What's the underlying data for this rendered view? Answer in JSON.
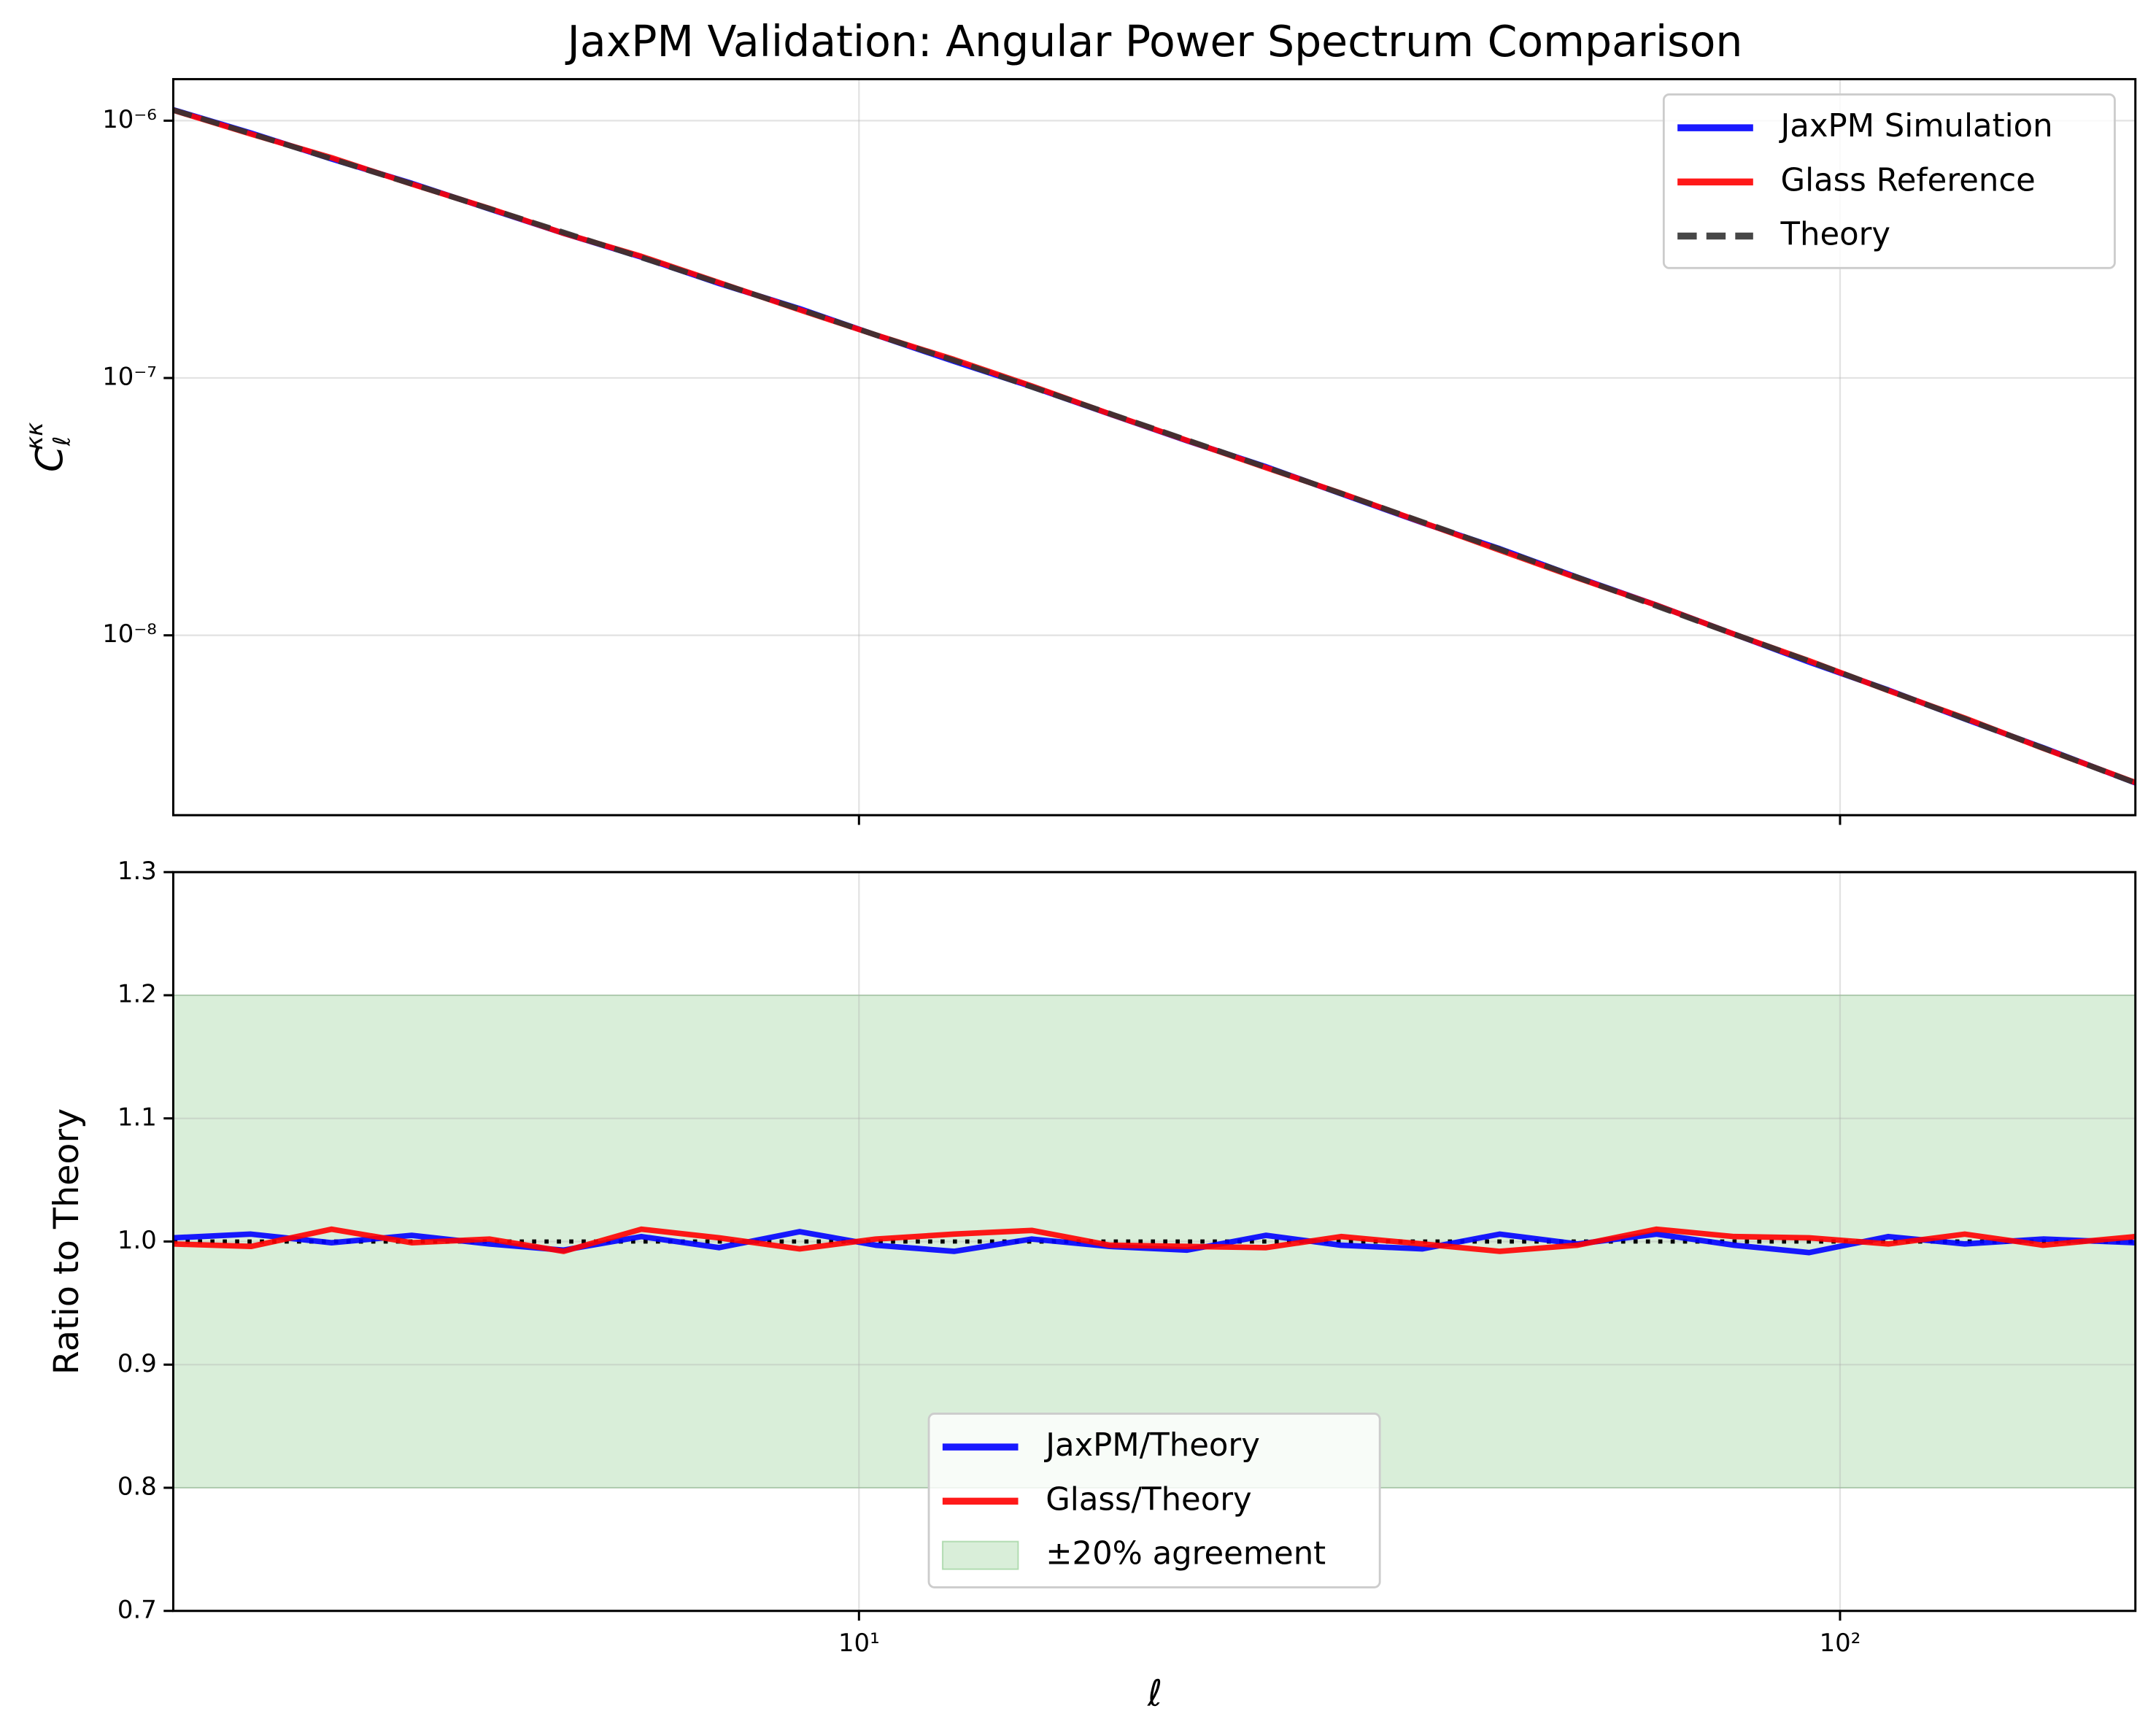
{
  "chart_data": [
    {
      "type": "line",
      "title": "JaxPM Validation: Angular Power Spectrum Comparison",
      "ylabel": {
        "base": "C",
        "sub": "ℓ",
        "sup": "κκ"
      },
      "x": [
        2,
        2.4,
        2.9,
        3.5,
        4.2,
        5,
        6,
        7.2,
        8.7,
        10.4,
        12.5,
        15,
        18,
        21.6,
        26,
        31,
        37.5,
        45,
        54,
        65,
        78,
        93,
        112,
        134,
        161,
        200
      ],
      "xscale": "log",
      "yscale": "log",
      "xlim": [
        2,
        200
      ],
      "ylim": [
        2e-09,
        1.45e-06
      ],
      "xticks": [
        10,
        100
      ],
      "yticks": [
        {
          "value": 1e-08,
          "label": "10⁻⁸"
        },
        {
          "value": 1e-07,
          "label": "10⁻⁷"
        },
        {
          "value": 1e-06,
          "label": "10⁻⁶"
        }
      ],
      "grid": true,
      "legend": "upper right",
      "series": [
        {
          "name": "JaxPM Simulation",
          "color": "#0000ff",
          "values": [
            1.103e-06,
            8.96e-07,
            7.1e-07,
            5.71e-07,
            4.54e-07,
            3.65e-07,
            2.95e-07,
            2.33e-07,
            1.86e-07,
            1.47e-07,
            1.16e-07,
            9.25e-08,
            7.25e-08,
            5.7e-08,
            4.52e-08,
            3.55e-08,
            2.74e-08,
            2.17e-08,
            1.68e-08,
            1.31e-08,
            1.01e-08,
            7.87e-09,
            6.13e-09,
            4.73e-09,
            3.66e-09,
            2.67e-09
          ]
        },
        {
          "name": "Glass Reference",
          "color": "#ff0000",
          "values": [
            1.098e-06,
            8.87e-07,
            7.18e-07,
            5.67e-07,
            4.56e-07,
            3.65e-07,
            2.97e-07,
            2.35e-07,
            1.84e-07,
            1.47e-07,
            1.18e-07,
            9.31e-08,
            7.26e-08,
            5.72e-08,
            4.48e-08,
            3.57e-08,
            2.75e-08,
            2.14e-08,
            1.67e-08,
            1.31e-08,
            1.01e-08,
            7.96e-09,
            6.1e-09,
            4.77e-09,
            3.64e-09,
            2.68e-09
          ]
        },
        {
          "name": "Theory",
          "color": "#333333",
          "linestyle": "dashed",
          "values": [
            1.1e-06,
            8.91e-07,
            7.11e-07,
            5.68e-07,
            4.55e-07,
            3.68e-07,
            2.94e-07,
            2.34e-07,
            1.85e-07,
            1.47e-07,
            1.17e-07,
            9.23e-08,
            7.28e-08,
            5.74e-08,
            4.5e-08,
            3.56e-08,
            2.76e-08,
            2.16e-08,
            1.68e-08,
            1.3e-08,
            1.01e-08,
            7.94e-09,
            6.11e-09,
            4.74e-09,
            3.65e-09,
            2.67e-09
          ]
        }
      ]
    },
    {
      "type": "line",
      "xlabel": "ℓ",
      "ylabel": "Ratio to Theory",
      "x": [
        2,
        2.4,
        2.9,
        3.5,
        4.2,
        5,
        6,
        7.2,
        8.7,
        10.4,
        12.5,
        15,
        18,
        21.6,
        26,
        31,
        37.5,
        45,
        54,
        65,
        78,
        93,
        112,
        134,
        161,
        200
      ],
      "xscale": "log",
      "xlim": [
        2,
        200
      ],
      "ylim": [
        0.7,
        1.3
      ],
      "xticks": [
        {
          "value": 10,
          "label": "10¹"
        },
        {
          "value": 100,
          "label": "10²"
        }
      ],
      "yticks": [
        0.7,
        0.8,
        0.9,
        {
          "value": 1,
          "label": "1.0"
        },
        1.1,
        1.2,
        1.3
      ],
      "grid": true,
      "legend": "lower center",
      "reference_line": {
        "value": 1,
        "color": "#000000",
        "linestyle": "dotted"
      },
      "band": {
        "name": "±20% agreement",
        "range": [
          0.8,
          1.2
        ],
        "color": "#2ca02c"
      },
      "series": [
        {
          "name": "JaxPM/Theory",
          "color": "#0000ff",
          "values": [
            1.003,
            1.006,
            0.999,
            1.005,
            0.998,
            0.993,
            1.004,
            0.995,
            1.008,
            0.997,
            0.992,
            1.002,
            0.996,
            0.993,
            1.005,
            0.997,
            0.994,
            1.006,
            0.998,
            1.006,
            0.997,
            0.991,
            1.004,
            0.998,
            1.002,
            0.999
          ]
        },
        {
          "name": "Glass/Theory",
          "color": "#ff0000",
          "values": [
            0.998,
            0.996,
            1.01,
            0.999,
            1.002,
            0.992,
            1.01,
            1.003,
            0.994,
            1.002,
            1.006,
            1.009,
            0.997,
            0.996,
            0.995,
            1.004,
            0.998,
            0.992,
            0.997,
            1.01,
            1.004,
            1.003,
            0.998,
            1.006,
            0.997,
            1.004
          ]
        }
      ]
    }
  ]
}
